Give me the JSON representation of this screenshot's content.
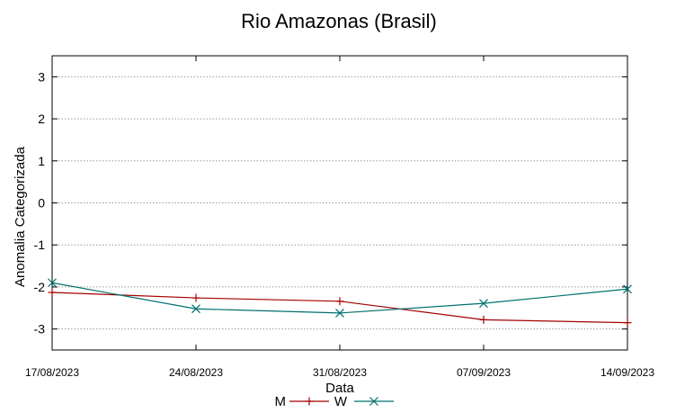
{
  "chart_data": {
    "type": "line",
    "title": "Rio Amazonas (Brasil)",
    "xlabel": "Data",
    "ylabel": "Anomalia Categorizada",
    "categories": [
      "17/08/2023",
      "24/08/2023",
      "31/08/2023",
      "07/09/2023",
      "14/09/2023"
    ],
    "ylim": [
      -3.5,
      3.5
    ],
    "yticks": [
      3,
      2,
      1,
      0,
      -1,
      -2,
      -3
    ],
    "grid": true,
    "legend": "bottom-center",
    "series": [
      {
        "name": "M",
        "color": "#a40000",
        "marker": "plus",
        "values": [
          -2.13,
          -2.26,
          -2.34,
          -2.78,
          -2.85
        ]
      },
      {
        "name": "W",
        "color": "#00706f",
        "marker": "cross",
        "values": [
          -1.9,
          -2.52,
          -2.62,
          -2.39,
          -2.05
        ]
      }
    ]
  }
}
